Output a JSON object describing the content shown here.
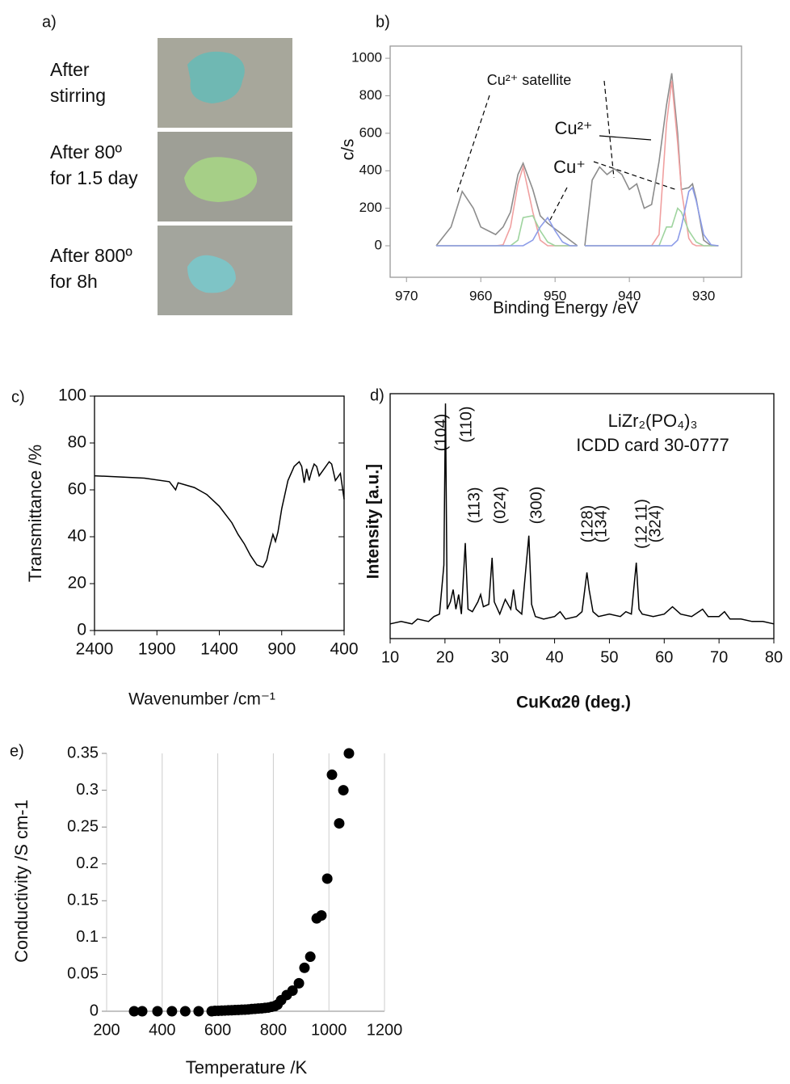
{
  "panel_a": {
    "label": "a)",
    "captions": [
      [
        "After",
        "stirring"
      ],
      [
        "After 80º",
        "for 1.5 day"
      ],
      [
        "After 800º",
        "for 8h"
      ]
    ]
  },
  "chart_data": [
    {
      "type": "line",
      "label": "b)",
      "ylabel": "c/s",
      "xlabel": "Binding Energy /eV",
      "xlim": [
        972.2,
        924.9
      ],
      "ylim": [
        -168,
        1065
      ],
      "xticks": [
        970,
        960,
        950,
        940,
        930
      ],
      "yticks": [
        0,
        200,
        400,
        600,
        800,
        1000
      ],
      "annotations": [
        "Cu²⁺ satellite",
        "Cu²⁺",
        "Cu⁺"
      ],
      "x": [
        966,
        964,
        962.5,
        961,
        960,
        959,
        958,
        957,
        956,
        955,
        954.3,
        953,
        952,
        951,
        950,
        949,
        948,
        947,
        946.5,
        946,
        945,
        944,
        943,
        942,
        941,
        940,
        939,
        938,
        937,
        936,
        935,
        934.3,
        933.5,
        933,
        932,
        931.5,
        931,
        930,
        929,
        928
      ],
      "series": [
        {
          "color": "#8c8c8c",
          "values": [
            0,
            100,
            290,
            200,
            100,
            80,
            60,
            100,
            180,
            380,
            440,
            300,
            160,
            120,
            90,
            60,
            30,
            0,
            null,
            0,
            350,
            420,
            380,
            410,
            380,
            300,
            330,
            200,
            220,
            450,
            750,
            920,
            600,
            300,
            310,
            330,
            250,
            30,
            0,
            0
          ]
        },
        {
          "color": "#f0a0a0",
          "values": [
            0,
            0,
            0,
            0,
            0,
            0,
            0,
            5,
            100,
            330,
            420,
            180,
            30,
            0,
            0,
            0,
            0,
            0,
            null,
            0,
            0,
            0,
            0,
            0,
            0,
            0,
            0,
            0,
            0,
            60,
            650,
            880,
            550,
            300,
            40,
            10,
            0,
            0,
            0,
            0
          ]
        },
        {
          "color": "#9fd49f",
          "values": [
            0,
            0,
            0,
            0,
            0,
            0,
            0,
            0,
            0,
            30,
            150,
            160,
            80,
            20,
            0,
            0,
            0,
            0,
            null,
            0,
            0,
            0,
            0,
            0,
            0,
            0,
            0,
            0,
            0,
            0,
            100,
            100,
            200,
            180,
            80,
            50,
            20,
            0,
            0,
            0
          ]
        },
        {
          "color": "#8c9ce8",
          "values": [
            0,
            0,
            0,
            0,
            0,
            0,
            0,
            0,
            0,
            0,
            0,
            30,
            100,
            150,
            80,
            20,
            0,
            0,
            null,
            0,
            0,
            0,
            0,
            0,
            0,
            0,
            0,
            0,
            0,
            0,
            0,
            0,
            30,
            100,
            290,
            310,
            240,
            60,
            5,
            0
          ]
        }
      ]
    },
    {
      "type": "line",
      "label": "c)",
      "ylabel": "Transmittance /%",
      "xlabel": "Wavenumber /cm⁻¹",
      "xlim": [
        2400,
        400
      ],
      "ylim": [
        0,
        100
      ],
      "xticks": [
        2400,
        1900,
        1400,
        900,
        400
      ],
      "yticks": [
        0,
        20,
        40,
        60,
        80,
        100
      ],
      "x": [
        2400,
        2200,
        2000,
        1800,
        1750,
        1730,
        1600,
        1500,
        1400,
        1300,
        1250,
        1200,
        1150,
        1100,
        1050,
        1020,
        1000,
        970,
        950,
        930,
        900,
        850,
        800,
        760,
        740,
        720,
        700,
        680,
        660,
        640,
        620,
        600,
        560,
        520,
        500,
        470,
        430,
        400
      ],
      "series": [
        {
          "color": "#000000",
          "values": [
            66,
            65.5,
            65,
            63.5,
            60,
            63,
            61,
            58,
            53,
            46,
            41,
            37,
            32,
            28,
            27,
            30,
            35,
            41,
            38,
            42,
            52,
            64,
            70,
            72,
            70,
            63,
            69,
            64,
            68,
            71,
            70,
            66,
            69,
            72,
            71,
            64,
            67,
            56
          ]
        }
      ]
    },
    {
      "type": "line",
      "label": "d)",
      "ylabel": "Intensity [a.u.]",
      "xlabel": "CuKα2θ (deg.)",
      "title": [
        "LiZr₂(PO₄)₃",
        "ICDD card 30-0777"
      ],
      "annotations": [
        "(104)",
        "(110)",
        "(113)",
        "(024)",
        "(300)",
        "(128)",
        "(134)",
        "(12 11)",
        "(324)"
      ],
      "xlim": [
        10,
        80
      ],
      "ylim": [
        0,
        100
      ],
      "xticks": [
        10,
        20,
        30,
        40,
        50,
        60,
        70,
        80
      ],
      "x": [
        10,
        12,
        14,
        15,
        17,
        18,
        19,
        19.8,
        20.1,
        20.4,
        21,
        21.5,
        22,
        22.5,
        23,
        23.7,
        24.2,
        25,
        26,
        26.5,
        27,
        28,
        28.6,
        29,
        30,
        31,
        32,
        32.5,
        33,
        34,
        35.3,
        35.8,
        36.5,
        38,
        40,
        41,
        42,
        44,
        45,
        45.9,
        46.3,
        47,
        48,
        50,
        52,
        53,
        54,
        54.9,
        55.4,
        56,
        58,
        60,
        61.5,
        63,
        65,
        67,
        68,
        70,
        71,
        72,
        74,
        76,
        78,
        80
      ],
      "series": [
        {
          "color": "#000000",
          "values": [
            6,
            7,
            6,
            8,
            7,
            9,
            10,
            30,
            96,
            12,
            15,
            20,
            12,
            18,
            10,
            39,
            12,
            11,
            15,
            18,
            13,
            14,
            33,
            15,
            10,
            16,
            12,
            20,
            12,
            10,
            42,
            14,
            9,
            8,
            9,
            11,
            8,
            9,
            11,
            27,
            20,
            11,
            9,
            10,
            9,
            11,
            10,
            31,
            12,
            10,
            9,
            10,
            13,
            10,
            9,
            12,
            9,
            9,
            11,
            8,
            8,
            7,
            7,
            6
          ]
        }
      ]
    },
    {
      "type": "scatter",
      "label": "e)",
      "ylabel": "Conductivity /S cm-1",
      "xlabel": "Temperature /K",
      "grid": "x",
      "color": "#000000",
      "xlim": [
        200,
        1200
      ],
      "ylim": [
        0,
        0.35
      ],
      "xticks": [
        200,
        400,
        600,
        800,
        1000,
        1200
      ],
      "yticks": [
        0,
        0.05,
        0.1,
        0.15,
        0.2,
        0.25,
        0.3,
        0.35
      ],
      "x": [
        299,
        328,
        383,
        435,
        483,
        531,
        578,
        590,
        602,
        614,
        626,
        638,
        650,
        662,
        674,
        686,
        698,
        710,
        722,
        734,
        746,
        758,
        770,
        782,
        794,
        805,
        815,
        828,
        848,
        869,
        892,
        912,
        933,
        956,
        973,
        994,
        1011,
        1037,
        1052,
        1072
      ],
      "values": [
        0,
        0,
        0,
        0,
        0,
        0,
        0,
        0.0005,
        0.0006,
        0.0008,
        0.001,
        0.0012,
        0.0014,
        0.0016,
        0.0018,
        0.002,
        0.0022,
        0.0025,
        0.003,
        0.0033,
        0.0037,
        0.004,
        0.0045,
        0.005,
        0.006,
        0.007,
        0.009,
        0.015,
        0.022,
        0.028,
        0.038,
        0.059,
        0.074,
        0.126,
        0.13,
        0.18,
        0.321,
        0.255,
        0.3,
        0.35
      ]
    }
  ]
}
